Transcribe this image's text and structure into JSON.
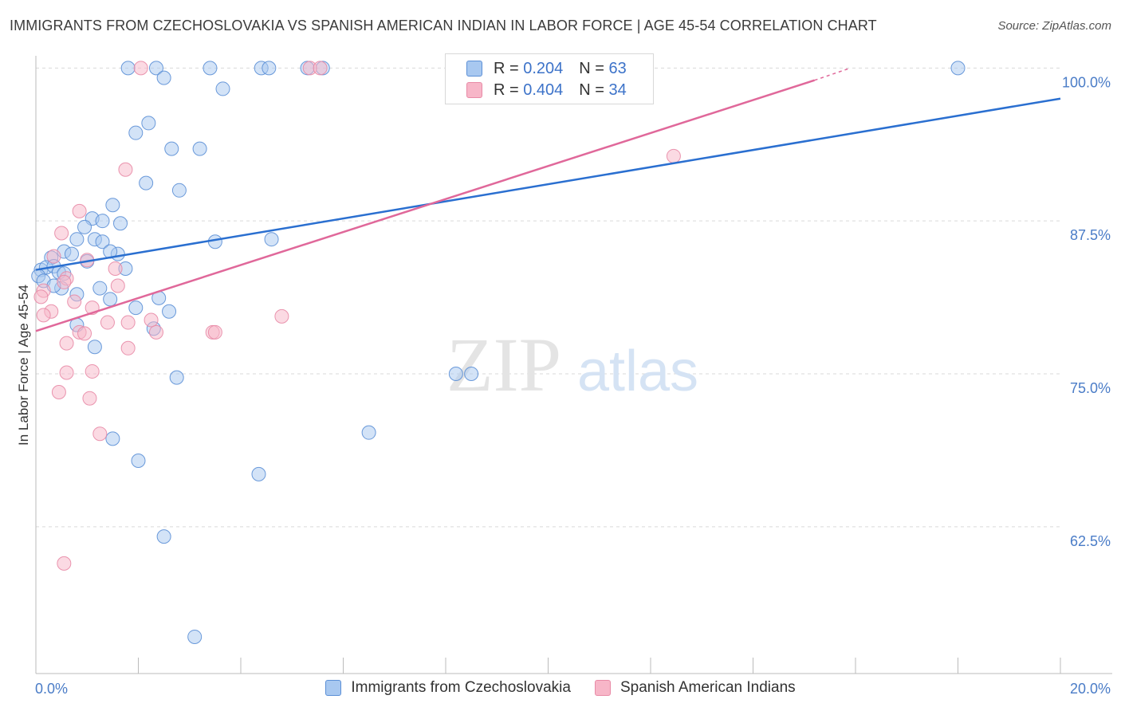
{
  "title": "IMMIGRANTS FROM CZECHOSLOVAKIA VS SPANISH AMERICAN INDIAN IN LABOR FORCE | AGE 45-54 CORRELATION CHART",
  "source": "Source: ZipAtlas.com",
  "watermark": {
    "zip": "ZIP",
    "atlas": "atlas"
  },
  "legend": {
    "r_label": "R =",
    "n_label": "N =",
    "series1": {
      "r": "0.204",
      "n": "63"
    },
    "series2": {
      "r": "0.404",
      "n": "34"
    }
  },
  "colors": {
    "blue_fill": "#a8c8f0",
    "blue_stroke": "#5b8fd6",
    "blue_line": "#2a6fd0",
    "pink_fill": "#f7b6c8",
    "pink_stroke": "#e88aa6",
    "pink_line": "#e0689a",
    "tick": "#4a7cc7"
  },
  "chart_data": {
    "type": "scatter",
    "title": "IMMIGRANTS FROM CZECHOSLOVAKIA VS SPANISH AMERICAN INDIAN IN LABOR FORCE | AGE 45-54 CORRELATION CHART",
    "xlabel": "",
    "ylabel": "In Labor Force | Age 45-54",
    "xlim": [
      0,
      20
    ],
    "ylim": [
      50.5,
      101
    ],
    "x_tick_labels": [
      {
        "value": 0,
        "label": "0.0%"
      },
      {
        "value": 20,
        "label": "20.0%"
      }
    ],
    "y_tick_labels": [
      {
        "value": 100,
        "label": "100.0%"
      },
      {
        "value": 87.5,
        "label": "87.5%"
      },
      {
        "value": 75,
        "label": "75.0%"
      },
      {
        "value": 62.5,
        "label": "62.5%"
      }
    ],
    "series": [
      {
        "name": "Immigrants from Czechoslovakia",
        "r": 0.204,
        "n": 63,
        "trend": {
          "x": [
            0,
            20
          ],
          "y": [
            83.5,
            97.5
          ]
        },
        "points": [
          [
            1.8,
            100
          ],
          [
            2.35,
            100
          ],
          [
            3.4,
            100
          ],
          [
            4.4,
            100
          ],
          [
            4.55,
            100
          ],
          [
            5.3,
            100
          ],
          [
            5.6,
            100
          ],
          [
            9.5,
            100
          ],
          [
            18.0,
            100
          ],
          [
            2.5,
            99.2
          ],
          [
            3.65,
            98.3
          ],
          [
            2.2,
            95.5
          ],
          [
            1.95,
            94.7
          ],
          [
            2.65,
            93.4
          ],
          [
            3.2,
            93.4
          ],
          [
            2.15,
            90.6
          ],
          [
            2.8,
            90.0
          ],
          [
            1.5,
            88.8
          ],
          [
            1.1,
            87.7
          ],
          [
            1.3,
            87.5
          ],
          [
            1.65,
            87.3
          ],
          [
            0.95,
            87.0
          ],
          [
            0.8,
            86.0
          ],
          [
            1.15,
            86.0
          ],
          [
            1.3,
            85.8
          ],
          [
            3.5,
            85.8
          ],
          [
            4.6,
            86.0
          ],
          [
            0.3,
            84.5
          ],
          [
            0.55,
            85.0
          ],
          [
            0.7,
            84.8
          ],
          [
            1.0,
            84.2
          ],
          [
            1.6,
            84.8
          ],
          [
            1.45,
            85.0
          ],
          [
            0.1,
            83.5
          ],
          [
            0.2,
            83.7
          ],
          [
            0.35,
            83.8
          ],
          [
            0.45,
            83.3
          ],
          [
            0.05,
            83.0
          ],
          [
            0.55,
            83.2
          ],
          [
            1.75,
            83.6
          ],
          [
            0.15,
            82.6
          ],
          [
            0.5,
            82.0
          ],
          [
            0.35,
            82.2
          ],
          [
            0.8,
            81.5
          ],
          [
            1.25,
            82.0
          ],
          [
            1.45,
            81.1
          ],
          [
            2.4,
            81.2
          ],
          [
            1.95,
            80.4
          ],
          [
            2.6,
            80.1
          ],
          [
            0.8,
            79.0
          ],
          [
            2.3,
            78.7
          ],
          [
            1.15,
            77.2
          ],
          [
            2.75,
            74.7
          ],
          [
            8.2,
            75.0
          ],
          [
            8.5,
            75.0
          ],
          [
            6.5,
            70.2
          ],
          [
            1.5,
            69.7
          ],
          [
            2.0,
            67.9
          ],
          [
            4.35,
            66.8
          ],
          [
            2.5,
            61.7
          ],
          [
            3.1,
            53.5
          ]
        ]
      },
      {
        "name": "Spanish American Indians",
        "r": 0.404,
        "n": 34,
        "trend": {
          "x": [
            0,
            15.2
          ],
          "y": [
            78.5,
            99
          ]
        },
        "trend_dashed": {
          "x": [
            15.2,
            15.9
          ],
          "y": [
            99,
            100
          ]
        },
        "points": [
          [
            2.05,
            100
          ],
          [
            5.35,
            100
          ],
          [
            5.55,
            100
          ],
          [
            12.45,
            92.8
          ],
          [
            1.75,
            91.7
          ],
          [
            0.85,
            88.3
          ],
          [
            0.5,
            86.5
          ],
          [
            1.0,
            84.3
          ],
          [
            0.35,
            84.6
          ],
          [
            1.55,
            83.6
          ],
          [
            0.6,
            82.8
          ],
          [
            0.55,
            82.5
          ],
          [
            0.15,
            81.8
          ],
          [
            0.1,
            81.3
          ],
          [
            1.6,
            82.2
          ],
          [
            0.75,
            80.9
          ],
          [
            1.1,
            80.4
          ],
          [
            0.3,
            80.1
          ],
          [
            0.15,
            79.8
          ],
          [
            1.4,
            79.2
          ],
          [
            1.8,
            79.2
          ],
          [
            2.25,
            79.4
          ],
          [
            4.8,
            79.7
          ],
          [
            0.85,
            78.4
          ],
          [
            0.95,
            78.3
          ],
          [
            2.35,
            78.4
          ],
          [
            3.45,
            78.4
          ],
          [
            3.5,
            78.4
          ],
          [
            0.6,
            77.5
          ],
          [
            1.8,
            77.1
          ],
          [
            0.6,
            75.1
          ],
          [
            1.1,
            75.2
          ],
          [
            0.45,
            73.5
          ],
          [
            1.05,
            73.0
          ],
          [
            1.25,
            70.1
          ],
          [
            0.55,
            59.5
          ]
        ]
      }
    ]
  }
}
